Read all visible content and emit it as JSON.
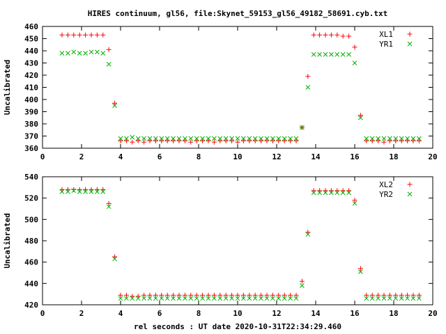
{
  "colors": {
    "series1": "#ff0000",
    "series2": "#00b000",
    "axis": "#000000",
    "background": "#ffffff"
  },
  "chart_data": [
    {
      "type": "scatter",
      "title": "HIRES continuum, gl56, file:Skynet_59153_gl56_49182_58691.cyb.txt",
      "xlabel": "",
      "ylabel": "Uncalibrated",
      "xlim": [
        0,
        20
      ],
      "ylim": [
        360,
        460
      ],
      "xticks": [
        0,
        2,
        4,
        6,
        8,
        10,
        12,
        14,
        16,
        18,
        20
      ],
      "yticks": [
        360,
        370,
        380,
        390,
        400,
        410,
        420,
        430,
        440,
        450,
        460
      ],
      "grid": false,
      "legend_position": "top-right",
      "series": [
        {
          "name": "XL1",
          "marker": "plus",
          "x": [
            1.0,
            1.3,
            1.6,
            1.9,
            2.2,
            2.5,
            2.8,
            3.1,
            3.4,
            3.7,
            4.0,
            4.3,
            4.6,
            4.9,
            5.2,
            5.5,
            5.8,
            6.1,
            6.4,
            6.7,
            7.0,
            7.3,
            7.6,
            7.9,
            8.2,
            8.5,
            8.8,
            9.1,
            9.4,
            9.7,
            10.0,
            10.3,
            10.6,
            10.9,
            11.2,
            11.5,
            11.8,
            12.1,
            12.4,
            12.7,
            13.0,
            13.3,
            13.6,
            13.9,
            14.2,
            14.5,
            14.8,
            15.1,
            15.4,
            15.7,
            16.0,
            16.3,
            16.6,
            16.9,
            17.2,
            17.5,
            17.8,
            18.1,
            18.4,
            18.7,
            19.0,
            19.3
          ],
          "y": [
            453,
            453,
            453,
            453,
            453,
            453,
            453,
            453,
            441,
            397,
            366,
            366,
            365,
            366,
            365,
            366,
            366,
            366,
            366,
            366,
            366,
            366,
            365,
            366,
            366,
            366,
            365,
            366,
            366,
            366,
            365,
            366,
            366,
            366,
            366,
            366,
            366,
            366,
            366,
            366,
            366,
            377,
            419,
            453,
            453,
            453,
            453,
            453,
            452,
            452,
            443,
            387,
            366,
            366,
            366,
            365,
            366,
            366,
            366,
            366,
            366,
            366
          ]
        },
        {
          "name": "YR1",
          "marker": "cross",
          "x": [
            1.0,
            1.3,
            1.6,
            1.9,
            2.2,
            2.5,
            2.8,
            3.1,
            3.4,
            3.7,
            4.0,
            4.3,
            4.6,
            4.9,
            5.2,
            5.5,
            5.8,
            6.1,
            6.4,
            6.7,
            7.0,
            7.3,
            7.6,
            7.9,
            8.2,
            8.5,
            8.8,
            9.1,
            9.4,
            9.7,
            10.0,
            10.3,
            10.6,
            10.9,
            11.2,
            11.5,
            11.8,
            12.1,
            12.4,
            12.7,
            13.0,
            13.3,
            13.6,
            13.9,
            14.2,
            14.5,
            14.8,
            15.1,
            15.4,
            15.7,
            16.0,
            16.3,
            16.6,
            16.9,
            17.2,
            17.5,
            17.8,
            18.1,
            18.4,
            18.7,
            19.0,
            19.3
          ],
          "y": [
            438,
            438,
            439,
            438,
            438,
            439,
            439,
            438,
            429,
            395,
            368,
            368,
            369,
            368,
            368,
            368,
            368,
            368,
            368,
            368,
            368,
            368,
            368,
            368,
            368,
            368,
            368,
            368,
            368,
            368,
            368,
            368,
            368,
            368,
            368,
            368,
            368,
            368,
            368,
            368,
            368,
            377,
            410,
            437,
            437,
            437,
            437,
            437,
            437,
            437,
            430,
            385,
            368,
            368,
            368,
            368,
            368,
            368,
            368,
            368,
            368,
            368
          ]
        }
      ]
    },
    {
      "type": "scatter",
      "title": "",
      "xlabel": "rel seconds : UT date 2020-10-31T22:34:29.460",
      "ylabel": "Uncalibrated",
      "xlim": [
        0,
        20
      ],
      "ylim": [
        420,
        540
      ],
      "xticks": [
        0,
        2,
        4,
        6,
        8,
        10,
        12,
        14,
        16,
        18,
        20
      ],
      "yticks": [
        420,
        440,
        460,
        480,
        500,
        520,
        540
      ],
      "grid": false,
      "legend_position": "top-right",
      "series": [
        {
          "name": "XL2",
          "marker": "plus",
          "x": [
            1.0,
            1.3,
            1.6,
            1.9,
            2.2,
            2.5,
            2.8,
            3.1,
            3.4,
            3.7,
            4.0,
            4.3,
            4.6,
            4.9,
            5.2,
            5.5,
            5.8,
            6.1,
            6.4,
            6.7,
            7.0,
            7.3,
            7.6,
            7.9,
            8.2,
            8.5,
            8.8,
            9.1,
            9.4,
            9.7,
            10.0,
            10.3,
            10.6,
            10.9,
            11.2,
            11.5,
            11.8,
            12.1,
            12.4,
            12.7,
            13.0,
            13.3,
            13.6,
            13.9,
            14.2,
            14.5,
            14.8,
            15.1,
            15.4,
            15.7,
            16.0,
            16.3,
            16.6,
            16.9,
            17.2,
            17.5,
            17.8,
            18.1,
            18.4,
            18.7,
            19.0,
            19.3
          ],
          "y": [
            528,
            528,
            528,
            528,
            528,
            528,
            528,
            528,
            515,
            465,
            429,
            429,
            428,
            428,
            429,
            429,
            429,
            429,
            429,
            429,
            429,
            429,
            429,
            429,
            429,
            429,
            429,
            429,
            429,
            429,
            429,
            429,
            429,
            429,
            429,
            429,
            429,
            429,
            429,
            429,
            429,
            442,
            488,
            527,
            527,
            527,
            527,
            527,
            527,
            527,
            518,
            454,
            429,
            429,
            429,
            429,
            429,
            429,
            429,
            429,
            429,
            429
          ]
        },
        {
          "name": "YR2",
          "marker": "cross",
          "x": [
            1.0,
            1.3,
            1.6,
            1.9,
            2.2,
            2.5,
            2.8,
            3.1,
            3.4,
            3.7,
            4.0,
            4.3,
            4.6,
            4.9,
            5.2,
            5.5,
            5.8,
            6.1,
            6.4,
            6.7,
            7.0,
            7.3,
            7.6,
            7.9,
            8.2,
            8.5,
            8.8,
            9.1,
            9.4,
            9.7,
            10.0,
            10.3,
            10.6,
            10.9,
            11.2,
            11.5,
            11.8,
            12.1,
            12.4,
            12.7,
            13.0,
            13.3,
            13.6,
            13.9,
            14.2,
            14.5,
            14.8,
            15.1,
            15.4,
            15.7,
            16.0,
            16.3,
            16.6,
            16.9,
            17.2,
            17.5,
            17.8,
            18.1,
            18.4,
            18.7,
            19.0,
            19.3
          ],
          "y": [
            526,
            526,
            527,
            526,
            526,
            526,
            526,
            526,
            512,
            463,
            426,
            426,
            426,
            426,
            426,
            426,
            426,
            426,
            426,
            426,
            426,
            426,
            426,
            426,
            426,
            426,
            426,
            426,
            426,
            426,
            426,
            426,
            426,
            426,
            426,
            426,
            426,
            426,
            426,
            426,
            426,
            438,
            486,
            525,
            525,
            525,
            525,
            525,
            525,
            525,
            515,
            451,
            426,
            426,
            426,
            426,
            426,
            426,
            426,
            426,
            426,
            426
          ]
        }
      ]
    }
  ]
}
